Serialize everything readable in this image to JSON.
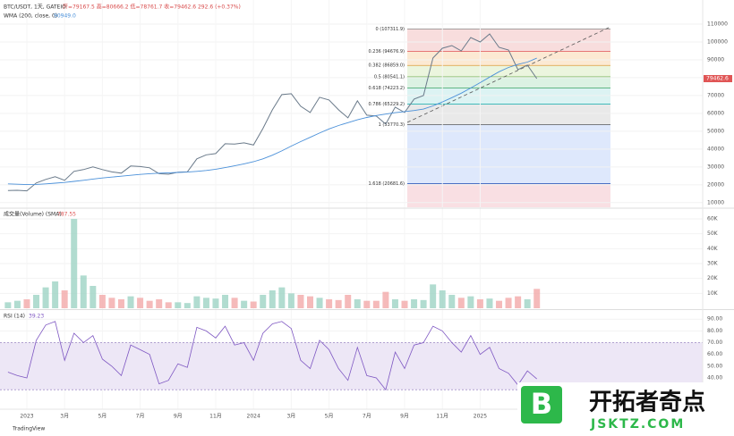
{
  "chart_data": [
    {
      "type": "line",
      "title": "BTC/USDT, 1天, GATEIO",
      "ohlc_text": "开=79167.5 高=80666.2 低=78761.7 收=79462.6 292.6 (+0.37%)",
      "x": [
        -1,
        -0.5,
        0,
        0.5,
        1,
        1.5,
        2,
        2.5,
        3,
        3.5,
        4,
        4.5,
        5,
        5.5,
        6,
        6.5,
        7,
        7.5,
        8,
        8.5,
        9,
        9.5,
        10,
        10.5,
        11,
        11.5,
        12,
        12.5,
        13,
        13.5,
        14,
        14.5,
        15,
        15.5,
        16,
        16.5,
        17,
        17.5,
        18,
        18.5,
        19,
        19.5,
        20,
        20.5,
        21,
        21.5,
        22,
        22.5,
        23,
        23.5,
        24,
        24.5,
        25,
        25.5,
        26,
        26.5,
        27
      ],
      "xlim": [
        -1.42,
        35.78
      ],
      "series": [
        {
          "name": "BTC/USDT",
          "color": "#6a7a8a",
          "values": [
            16800,
            16900,
            16600,
            21000,
            23000,
            24500,
            22500,
            27500,
            28500,
            30000,
            28500,
            27200,
            26500,
            30500,
            30200,
            29500,
            26200,
            25900,
            27000,
            27200,
            34500,
            36800,
            37500,
            43000,
            42800,
            43500,
            42300,
            51500,
            62000,
            70500,
            71000,
            64000,
            60500,
            69000,
            67500,
            62000,
            57500,
            67000,
            59000,
            58500,
            54000,
            63500,
            60500,
            68000,
            70000,
            91000,
            96500,
            98000,
            95000,
            102500,
            100000,
            104500,
            97000,
            95500,
            84500,
            87000,
            79462.6
          ]
        },
        {
          "name": "WMA (200, close, 0)",
          "color": "#4a90d9",
          "values": [
            20500,
            20300,
            20100,
            20200,
            20500,
            20900,
            21300,
            21900,
            22500,
            23200,
            23800,
            24300,
            24800,
            25300,
            25800,
            26200,
            26500,
            26700,
            26900,
            27100,
            27500,
            28000,
            28700,
            29600,
            30600,
            31700,
            32900,
            34500,
            36600,
            39000,
            41700,
            44200,
            46600,
            49000,
            51300,
            53200,
            54800,
            56400,
            57700,
            58800,
            59600,
            60400,
            61000,
            61600,
            62400,
            64200,
            66400,
            68800,
            71300,
            74200,
            77200,
            80300,
            83300,
            85700,
            87400,
            88700,
            90949.0
          ]
        }
      ],
      "ma_last": "90949.0",
      "last_price": "79462.6",
      "ylim": [
        7400,
        120000
      ],
      "yticks": [
        10000,
        20000,
        30000,
        40000,
        50000,
        60000,
        70000,
        80000,
        90000,
        100000,
        110000
      ],
      "fib_levels": [
        {
          "value": 107311.9,
          "label": "0 (107311.9)"
        },
        {
          "value": 94676.9,
          "label": "0.236 (94676.9)"
        },
        {
          "value": 86859.0,
          "label": "0.382 (86859.0)"
        },
        {
          "value": 80541.1,
          "label": "0.5 (80541.1)"
        },
        {
          "value": 74223.2,
          "label": "0.618 (74223.2)"
        },
        {
          "value": 65229.2,
          "label": "0.786 (65229.2)"
        },
        {
          "value": 53770.3,
          "label": "1 (53770.3)"
        },
        {
          "value": 20681.6,
          "label": "1.618 (20681.6)"
        }
      ],
      "fib_colors": [
        "#f6d5d5",
        "#fbe3c8",
        "#e6f2d6",
        "#d3efdc",
        "#d3f0f0",
        "#e3e3e3",
        "#d6e2fb",
        "#f8d7dc"
      ],
      "fib_line_colors": [
        "#888",
        "#e05555",
        "#e09a3a",
        "#7bb661",
        "#3aa060",
        "#2ab3b3",
        "#555",
        "#3060c0"
      ]
    },
    {
      "type": "bar",
      "title": "成交量(Volume) (SMA)",
      "last": "787.55",
      "values": [
        4000,
        5000,
        6000,
        9000,
        14000,
        18000,
        12000,
        60000,
        22000,
        15000,
        9000,
        7000,
        6000,
        8000,
        7000,
        5000,
        6000,
        4000,
        4000,
        3500,
        8000,
        7000,
        6500,
        9000,
        7000,
        5000,
        4500,
        9000,
        12000,
        14000,
        10000,
        9000,
        8000,
        7000,
        6000,
        5500,
        9000,
        6000,
        5000,
        5000,
        11000,
        6000,
        5000,
        6000,
        5500,
        16000,
        12000,
        9000,
        7000,
        8000,
        6000,
        6500,
        5000,
        7000,
        8000,
        6000,
        13000
      ],
      "colors": [
        "#9dd3c4",
        "#f3a9a9"
      ],
      "ylim": [
        0,
        66600
      ],
      "yticks": [
        {
          "value": 10000,
          "label": "10K"
        },
        {
          "value": 20000,
          "label": "20K"
        },
        {
          "value": 30000,
          "label": "30K"
        },
        {
          "value": 40000,
          "label": "40K"
        },
        {
          "value": 50000,
          "label": "50K"
        },
        {
          "value": 60000,
          "label": "60K"
        }
      ]
    },
    {
      "type": "line",
      "title": "RSI (14)",
      "last": "39.23",
      "color": "#7e57c2",
      "values": [
        45,
        42,
        40,
        72,
        85,
        88,
        55,
        78,
        70,
        76,
        56,
        50,
        42,
        68,
        64,
        60,
        35,
        38,
        52,
        49,
        83,
        80,
        74,
        84,
        68,
        70,
        55,
        78,
        86,
        88,
        82,
        55,
        48,
        72,
        64,
        48,
        38,
        66,
        42,
        40,
        30,
        62,
        48,
        68,
        70,
        84,
        80,
        70,
        62,
        76,
        60,
        66,
        48,
        44,
        34,
        46,
        39.23
      ],
      "band": [
        30,
        70
      ],
      "band_color": "#ede7f6",
      "ylim": [
        18,
        97
      ],
      "yticks": [
        {
          "value": 40,
          "label": "40.00"
        },
        {
          "value": 50,
          "label": "50.00"
        },
        {
          "value": 60,
          "label": "60.00"
        },
        {
          "value": 70,
          "label": "70.00"
        },
        {
          "value": 80,
          "label": "80.00"
        },
        {
          "value": 90,
          "label": "90.00"
        }
      ],
      "xticks": [
        {
          "value": 0,
          "label": "2023"
        },
        {
          "value": 2,
          "label": "3月"
        },
        {
          "value": 4,
          "label": "5月"
        },
        {
          "value": 6,
          "label": "7月"
        },
        {
          "value": 8,
          "label": "9月"
        },
        {
          "value": 10,
          "label": "11月"
        },
        {
          "value": 12,
          "label": "2024"
        },
        {
          "value": 14,
          "label": "3月"
        },
        {
          "value": 16,
          "label": "5月"
        },
        {
          "value": 18,
          "label": "7月"
        },
        {
          "value": 20,
          "label": "9月"
        },
        {
          "value": 22,
          "label": "11月"
        },
        {
          "value": 24,
          "label": "2025"
        }
      ]
    }
  ],
  "footer": "TradingView",
  "watermark": {
    "name": "开拓者奇点",
    "url": "JSKTZ.COM"
  }
}
